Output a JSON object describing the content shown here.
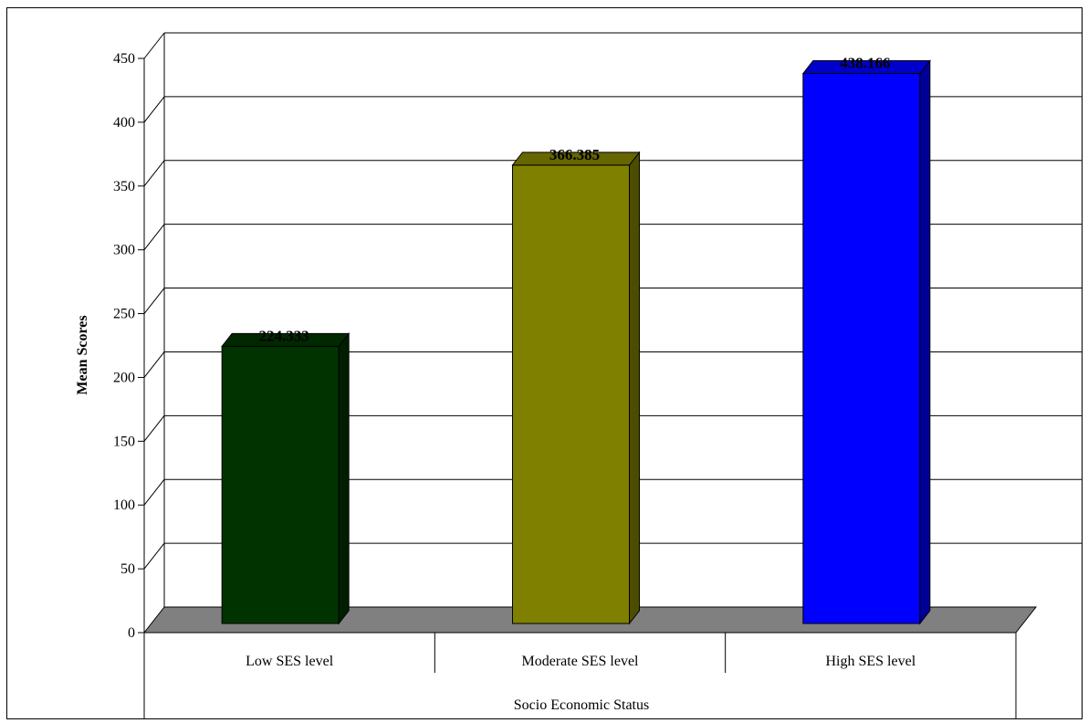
{
  "chart_data": {
    "type": "bar",
    "categories": [
      "Low SES level",
      "Moderate SES level",
      "High SES level"
    ],
    "values": [
      224.333,
      366.385,
      438.166
    ],
    "value_labels": [
      "224.333",
      "366.385",
      "438.166"
    ],
    "title": "",
    "xlabel": "Socio Economic Status",
    "ylabel": "Mean Scores",
    "ylim": [
      0,
      450
    ],
    "yticks": [
      0,
      50,
      100,
      150,
      200,
      250,
      300,
      350,
      400,
      450
    ],
    "grid": true,
    "colors": [
      "#003300",
      "#808000",
      "#0000ff"
    ],
    "style": "3d"
  }
}
